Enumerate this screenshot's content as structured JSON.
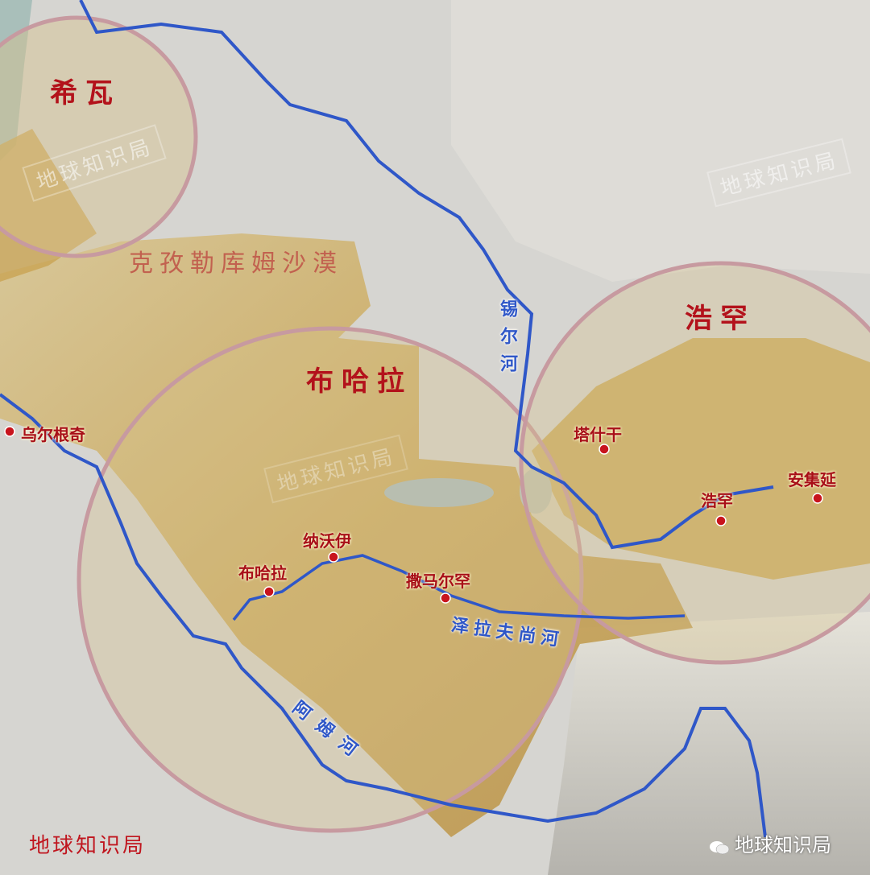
{
  "colors": {
    "circle_fill": "#d7c28b",
    "circle_stroke": "#c79aa0",
    "river": "#2f57c8",
    "city_dot": "#c8141d",
    "khanate_text": "#b3121b"
  },
  "khanates": [
    {
      "id": "khiva",
      "name": "希瓦"
    },
    {
      "id": "bukhara",
      "name": "布哈拉"
    },
    {
      "id": "kokand",
      "name": "浩罕"
    }
  ],
  "desert": {
    "name": "克孜勒库姆沙漠"
  },
  "rivers": [
    {
      "id": "syr",
      "name": "锡尔河"
    },
    {
      "id": "zeravshan",
      "name": "泽拉夫尚河"
    },
    {
      "id": "amu",
      "name": "阿姆河"
    }
  ],
  "cities": [
    {
      "id": "urgench",
      "name": "乌尔根奇"
    },
    {
      "id": "tashkent",
      "name": "塔什干"
    },
    {
      "id": "kokand",
      "name": "浩罕"
    },
    {
      "id": "andijan",
      "name": "安集延"
    },
    {
      "id": "navoi",
      "name": "纳沃伊"
    },
    {
      "id": "bukhara",
      "name": "布哈拉"
    },
    {
      "id": "samarkand",
      "name": "撒马尔罕"
    }
  ],
  "watermarks": {
    "text": "地球知识局",
    "credit": "地球知识局",
    "wechat": "地球知识局"
  }
}
